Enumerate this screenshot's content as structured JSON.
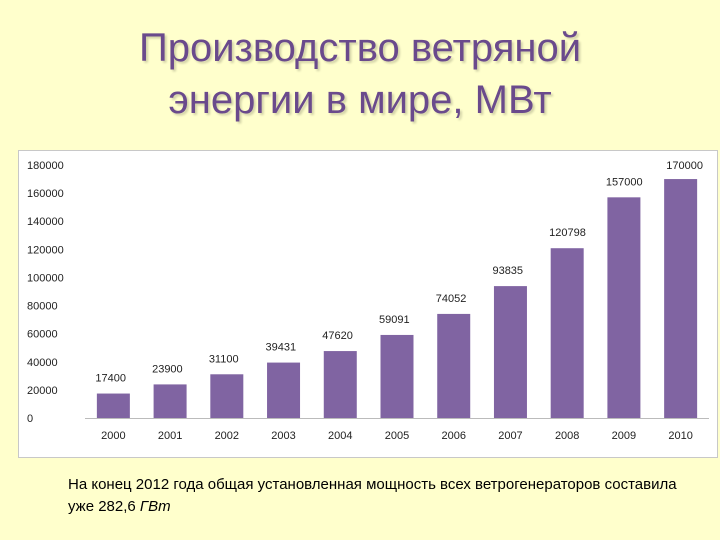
{
  "title": {
    "line1": "Производство ветряной",
    "line2": "энергии в мире, МВт"
  },
  "caption": {
    "text": "На конец 2012 года общая установленная мощность всех ветрогенераторов составила уже 282,6 ",
    "unit": "ГВт"
  },
  "chart_data": {
    "type": "bar",
    "categories": [
      "2000",
      "2001",
      "2002",
      "2003",
      "2004",
      "2005",
      "2006",
      "2007",
      "2008",
      "2009",
      "2010"
    ],
    "values": [
      17400,
      23900,
      31100,
      39431,
      47620,
      59091,
      74052,
      93835,
      120798,
      157000,
      170000
    ],
    "data_labels": [
      "17400",
      "23900",
      "31100",
      "39431",
      "47620",
      "59091",
      "74052",
      "93835",
      "120798",
      "157000",
      "170000"
    ],
    "ylim": [
      0,
      180000
    ],
    "yticks": [
      0,
      20000,
      40000,
      60000,
      80000,
      100000,
      120000,
      140000,
      160000,
      180000
    ],
    "ytick_labels": [
      "0",
      "20000",
      "40000",
      "60000",
      "80000",
      "100000",
      "120000",
      "140000",
      "160000",
      "180000"
    ],
    "grid": false,
    "legend": "none",
    "bar_color": "#8064a2"
  }
}
